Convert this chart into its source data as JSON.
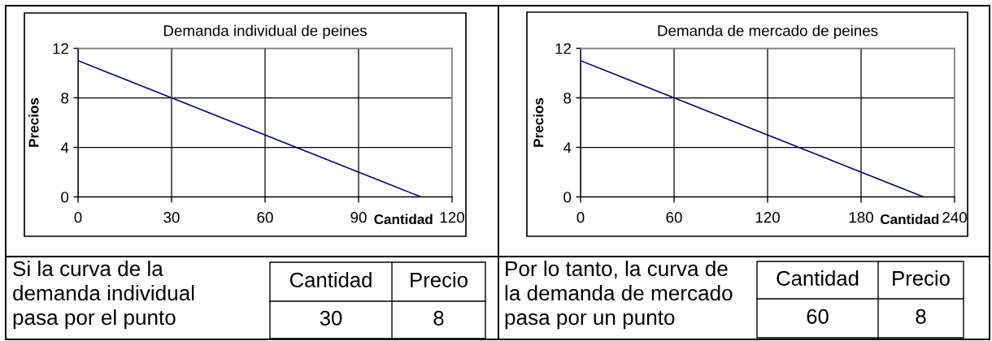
{
  "chart_data": [
    {
      "type": "line",
      "title": "Demanda individual de peines",
      "xlabel": "Cantidad",
      "ylabel": "Precios",
      "x": [
        0,
        10,
        20,
        30,
        40,
        50,
        60,
        70,
        80,
        90,
        100,
        110
      ],
      "series": [
        {
          "color": "#000080",
          "values": [
            11,
            10,
            9,
            8,
            7,
            6,
            5,
            4,
            3,
            2,
            1,
            0
          ]
        }
      ],
      "xlim": [
        0,
        120
      ],
      "xticks": [
        0,
        30,
        60,
        90,
        120
      ],
      "ylim": [
        0,
        12
      ],
      "yticks": [
        0,
        4,
        8,
        12
      ],
      "grid": true,
      "marker": "none",
      "line_style": "solid"
    },
    {
      "type": "line",
      "title": "Demanda de mercado de peines",
      "xlabel": "Cantidad",
      "ylabel": "Precios",
      "x": [
        0,
        20,
        40,
        60,
        80,
        100,
        120,
        140,
        160,
        180,
        200,
        220
      ],
      "series": [
        {
          "color": "#000080",
          "values": [
            11,
            10,
            9,
            8,
            7,
            6,
            5,
            4,
            3,
            2,
            1,
            0
          ]
        }
      ],
      "xlim": [
        0,
        240
      ],
      "xticks": [
        0,
        60,
        120,
        180,
        240
      ],
      "ylim": [
        0,
        12
      ],
      "yticks": [
        0,
        4,
        8,
        12
      ],
      "grid": true,
      "marker": "none",
      "line_style": "solid"
    },
    {
      "type": "other",
      "annotations": [
        "Si la curva de la\ndemanda individual\npasa por el punto",
        "Cantidad",
        "Precio",
        "30",
        "8"
      ]
    },
    {
      "type": "other",
      "annotations": [
        "Por lo tanto, la curva de\nla demanda de mercado\npasa por un punto",
        "Cantidad",
        "Precio",
        "60",
        "8"
      ]
    }
  ]
}
